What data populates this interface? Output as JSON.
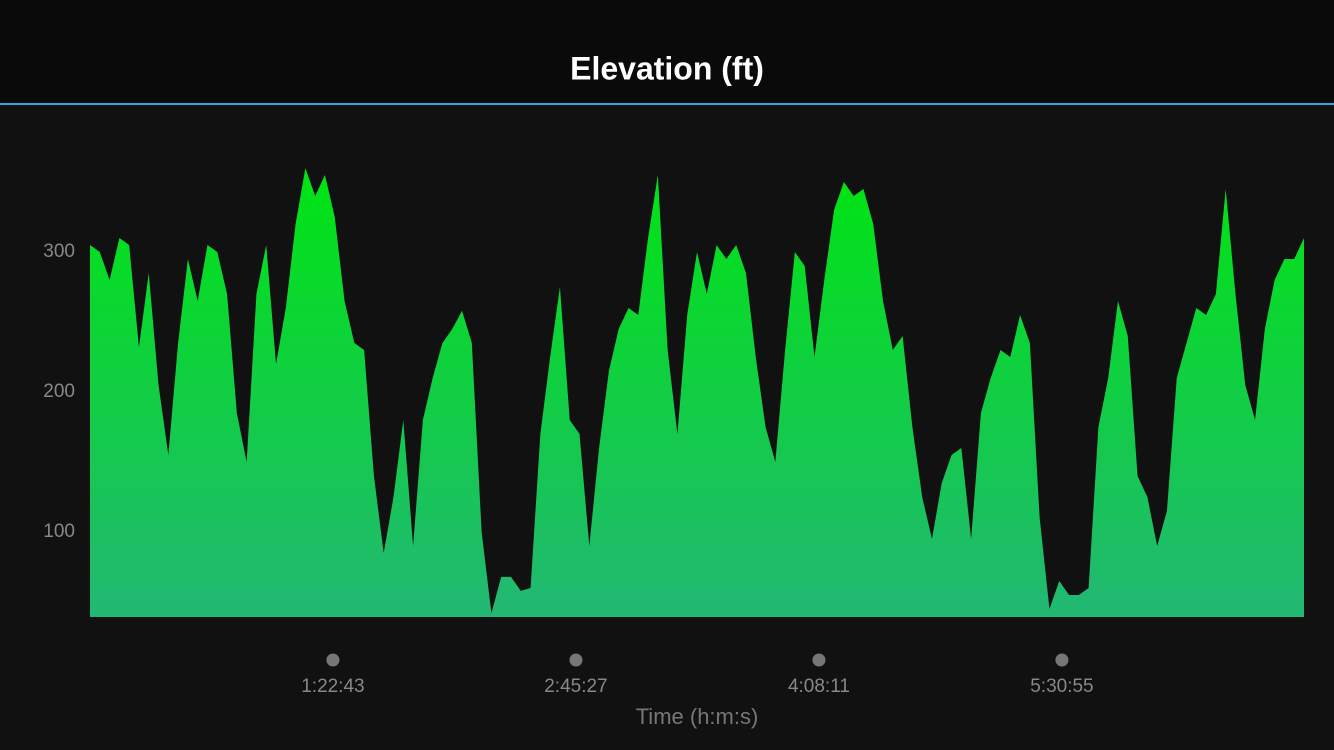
{
  "chart_data": {
    "type": "area",
    "title": "Elevation (ft)",
    "x_label": "Time (h:m:s)",
    "x": [
      0,
      200,
      400,
      600,
      800,
      1000,
      1200,
      1400,
      1600,
      1800,
      2000,
      2200,
      2400,
      2600,
      2800,
      3000,
      3200,
      3400,
      3600,
      3800,
      4000,
      4200,
      4400,
      4600,
      4800,
      5000,
      5200,
      5400,
      5600,
      5800,
      6000,
      6200,
      6400,
      6600,
      6800,
      7000,
      7200,
      7400,
      7600,
      7800,
      8000,
      8200,
      8400,
      8600,
      8800,
      9000,
      9200,
      9400,
      9600,
      9800,
      10000,
      10200,
      10400,
      10600,
      10800,
      11000,
      11200,
      11400,
      11600,
      11800,
      12000,
      12200,
      12400,
      12600,
      12800,
      13000,
      13200,
      13400,
      13600,
      13800,
      14000,
      14200,
      14400,
      14600,
      14800,
      15000,
      15200,
      15400,
      15600,
      15800,
      16000,
      16200,
      16400,
      16600,
      16800,
      17000,
      17200,
      17400,
      17600,
      17800,
      18000,
      18200,
      18400,
      18600,
      18800,
      19000,
      19200,
      19400,
      19600,
      19800,
      20000,
      20200,
      20400,
      20600,
      20800,
      21000,
      21200,
      21400,
      21600,
      21800,
      22000,
      22200,
      22400,
      22600,
      22800,
      23000,
      23200,
      23400,
      23600,
      23800,
      24000,
      24200,
      24400,
      24600,
      24800
    ],
    "values": [
      305,
      300,
      280,
      310,
      305,
      232,
      285,
      205,
      155,
      235,
      295,
      265,
      305,
      300,
      270,
      185,
      150,
      270,
      305,
      220,
      260,
      320,
      360,
      340,
      355,
      325,
      265,
      235,
      230,
      140,
      85,
      125,
      180,
      90,
      180,
      210,
      235,
      245,
      258,
      235,
      100,
      42,
      68,
      68,
      58,
      60,
      170,
      225,
      275,
      180,
      170,
      90,
      160,
      215,
      245,
      260,
      255,
      310,
      355,
      230,
      170,
      255,
      300,
      270,
      305,
      295,
      305,
      285,
      225,
      175,
      150,
      230,
      300,
      290,
      225,
      280,
      330,
      350,
      340,
      345,
      320,
      265,
      230,
      240,
      175,
      125,
      95,
      135,
      155,
      160,
      95,
      185,
      210,
      230,
      225,
      255,
      235,
      110,
      45,
      65,
      55,
      55,
      60,
      175,
      210,
      265,
      240,
      140,
      125,
      90,
      115,
      210,
      235,
      260,
      255,
      270,
      345,
      270,
      205,
      180,
      245,
      280,
      295,
      295,
      310
    ],
    "xlim": [
      0,
      24800
    ],
    "ylim": [
      39.3,
      370
    ],
    "xticks": [
      {
        "value": 4963,
        "label": "1:22:43"
      },
      {
        "value": 9927,
        "label": "2:45:27"
      },
      {
        "value": 14891,
        "label": "4:08:11"
      },
      {
        "value": 19855,
        "label": "5:30:55"
      }
    ],
    "yticks": [
      100,
      200,
      300
    ],
    "color_top": "#00e412",
    "color_bottom": "#22b874"
  }
}
